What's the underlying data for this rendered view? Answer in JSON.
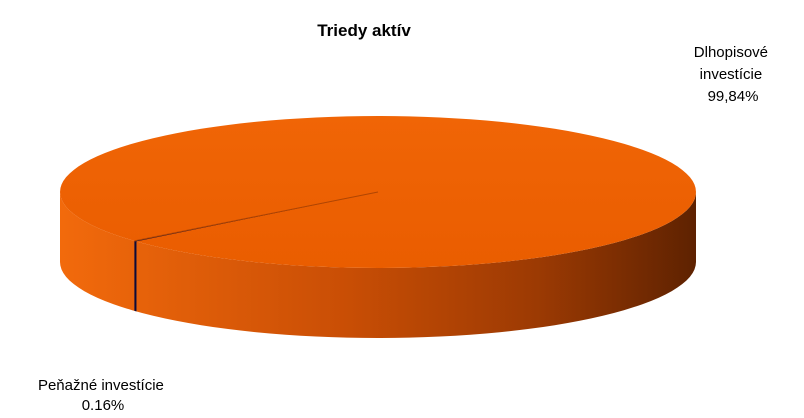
{
  "chart_data": {
    "type": "pie",
    "title": "Triedy aktív",
    "style": "3d",
    "categories": [
      "Dlhopisové investície",
      "Peňažné investície"
    ],
    "values": [
      99.84,
      0.16
    ],
    "labels": [
      {
        "lines": [
          "Dlhopisové",
          "investície",
          "99,84%"
        ]
      },
      {
        "lines": [
          "Peňažné investície",
          "0.16%"
        ]
      }
    ],
    "colors": [
      "#ee6000",
      "#0a0a3a"
    ]
  }
}
